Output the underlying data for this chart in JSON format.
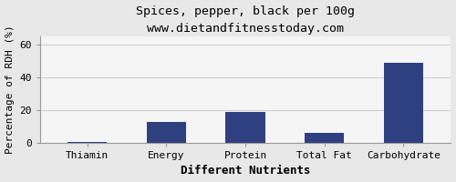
{
  "title": "Spices, pepper, black per 100g",
  "subtitle": "www.dietandfitnesstoday.com",
  "xlabel": "Different Nutrients",
  "ylabel": "Percentage of RDH (%)",
  "categories": [
    "Thiamin",
    "Energy",
    "Protein",
    "Total Fat",
    "Carbohydrate"
  ],
  "values": [
    0.3,
    13,
    19,
    6,
    49
  ],
  "bar_color": "#2e4080",
  "ylim": [
    0,
    65
  ],
  "yticks": [
    0,
    20,
    40,
    60
  ],
  "background_color": "#e8e8e8",
  "plot_bg_color": "#f5f5f5",
  "title_fontsize": 9.5,
  "subtitle_fontsize": 8,
  "xlabel_fontsize": 9,
  "ylabel_fontsize": 8,
  "tick_fontsize": 8,
  "grid_color": "#d0d0d0"
}
